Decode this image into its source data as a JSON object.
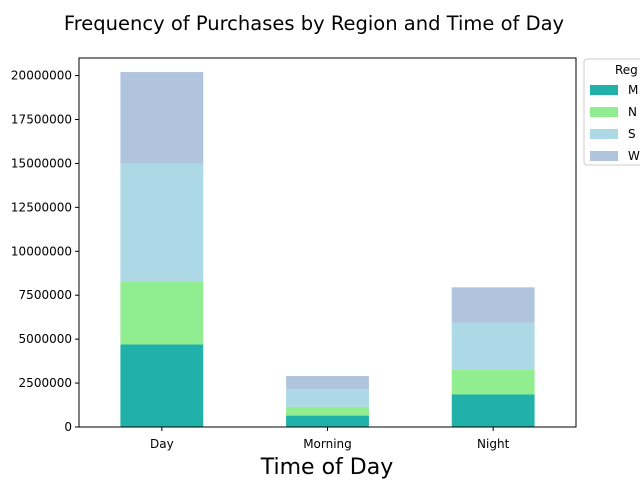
{
  "chart_data": {
    "type": "bar",
    "stacked": true,
    "title": "Frequency of Purchases by Region and Time of Day",
    "xlabel": "Time of Day",
    "ylabel": "",
    "categories": [
      "Day",
      "Morning",
      "Night"
    ],
    "ylim": [
      0,
      21000000
    ],
    "yticks": [
      0,
      2500000,
      5000000,
      7500000,
      10000000,
      12500000,
      15000000,
      17500000,
      20000000
    ],
    "ytick_labels": [
      "0",
      "2500000",
      "5000000",
      "7500000",
      "10000000",
      "12500000",
      "15000000",
      "17500000",
      "20000000"
    ],
    "grid": false,
    "legend": {
      "title": "Reg",
      "placement": "outside-top-right"
    },
    "series": [
      {
        "name": "M",
        "color": "#20b2aa",
        "values": [
          4700000,
          650000,
          1850000
        ]
      },
      {
        "name": "N",
        "color": "#90ee90",
        "values": [
          3600000,
          500000,
          1400000
        ]
      },
      {
        "name": "S",
        "color": "#add8e6",
        "values": [
          6700000,
          1000000,
          2700000
        ]
      },
      {
        "name": "W",
        "color": "#b0c4de",
        "values": [
          5200000,
          750000,
          2000000
        ]
      }
    ]
  }
}
